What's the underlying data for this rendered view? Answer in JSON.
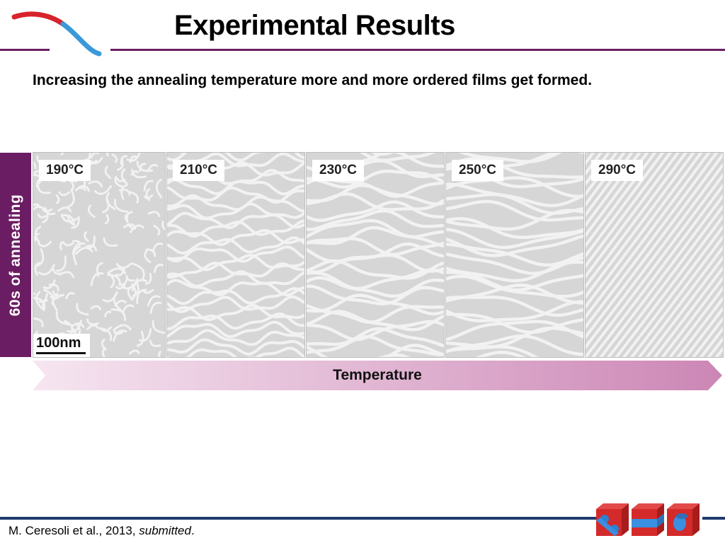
{
  "header": {
    "title": "Experimental Results",
    "subtitle": "Increasing the annealing temperature more and more ordered films get formed."
  },
  "side_tab": {
    "label": "60s of annealing"
  },
  "panels": [
    {
      "label": "190°C",
      "scale_bar": "100nm"
    },
    {
      "label": "210°C"
    },
    {
      "label": "230°C"
    },
    {
      "label": "250°C"
    },
    {
      "label": "290°C"
    }
  ],
  "arrow": {
    "label": "Temperature"
  },
  "footer": {
    "citation": "M. Ceresoli et al., 2013, ",
    "citation_italic": "submitted",
    "citation_end": "."
  },
  "colors": {
    "accent": "#6b1d63",
    "footer_rule": "#1e3a6e",
    "arrow_start": "#f6e6f1",
    "arrow_end": "#cc86b5"
  },
  "icons": {
    "logo": "polymer-chain-logo-icon",
    "cubes": "block-copolymer-cubes-icon"
  }
}
